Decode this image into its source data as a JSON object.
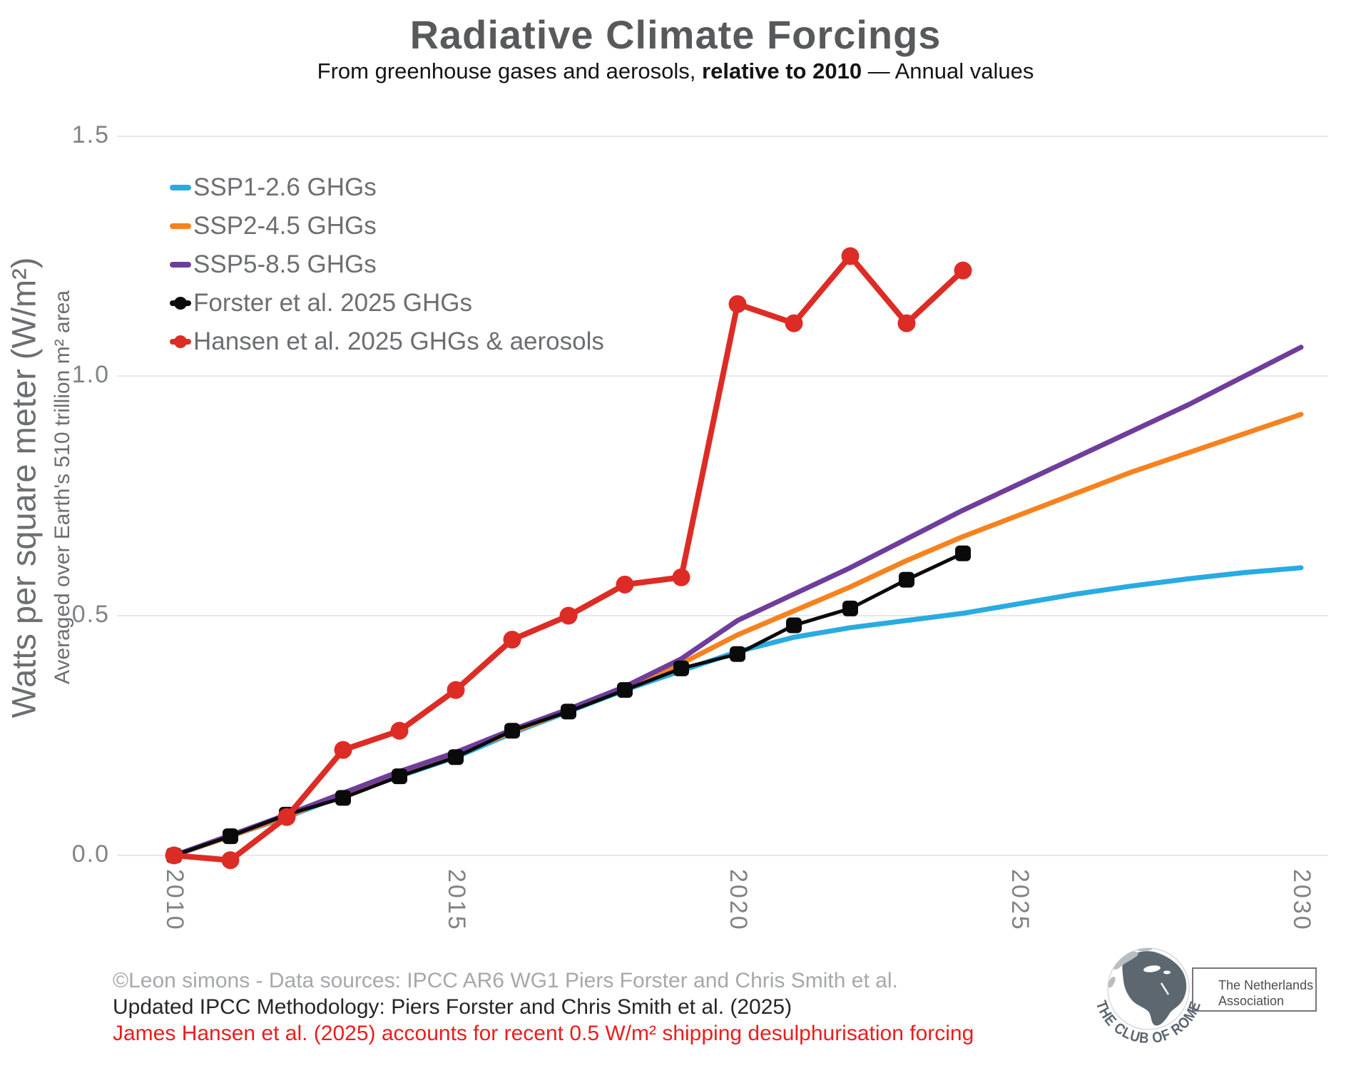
{
  "header": {
    "subtitle_pre": "From greenhouse gases and aerosols, ",
    "subtitle_bold": "relative to 2010",
    "subtitle_post": " — Annual values"
  },
  "chart_data": {
    "type": "line",
    "title": "Radiative Climate Forcings",
    "subtitle": "From greenhouse gases and aerosols, relative to 2010 — Annual values",
    "xlabel": "",
    "ylabel": "Watts per square meter (W/m²)",
    "ylabel_sub": "Averaged over Earth's 510 trillion m² area",
    "xlim": [
      2010,
      2030
    ],
    "ylim": [
      0.0,
      1.5
    ],
    "x_ticks": [
      2010,
      2015,
      2020,
      2025,
      2030
    ],
    "y_ticks": [
      0.0,
      0.5,
      1.0,
      1.5
    ],
    "grid": "horizontal",
    "grid_color": "#E8E8E8",
    "legend_position": "top-left",
    "series": [
      {
        "name": "SSP1-2.6 GHGs",
        "color": "#29ABE2",
        "marker": "none",
        "line_width": 7,
        "x": [
          2010,
          2011,
          2012,
          2013,
          2014,
          2015,
          2016,
          2017,
          2018,
          2019,
          2020,
          2021,
          2022,
          2023,
          2024,
          2025,
          2026,
          2027,
          2028,
          2029,
          2030
        ],
        "values": [
          0.0,
          0.04,
          0.08,
          0.125,
          0.165,
          0.205,
          0.255,
          0.3,
          0.345,
          0.385,
          0.425,
          0.455,
          0.475,
          0.49,
          0.505,
          0.525,
          0.545,
          0.562,
          0.577,
          0.59,
          0.6
        ]
      },
      {
        "name": "SSP2-4.5 GHGs",
        "color": "#F6821F",
        "marker": "none",
        "line_width": 7,
        "x": [
          2010,
          2011,
          2012,
          2013,
          2014,
          2015,
          2016,
          2017,
          2018,
          2019,
          2020,
          2021,
          2022,
          2023,
          2024,
          2025,
          2026,
          2027,
          2028,
          2029,
          2030
        ],
        "values": [
          0.0,
          0.04,
          0.082,
          0.127,
          0.17,
          0.21,
          0.258,
          0.302,
          0.348,
          0.4,
          0.46,
          0.51,
          0.56,
          0.615,
          0.665,
          0.71,
          0.755,
          0.8,
          0.84,
          0.88,
          0.92
        ]
      },
      {
        "name": "SSP5-8.5 GHGs",
        "color": "#6F3D9B",
        "marker": "none",
        "line_width": 7,
        "x": [
          2010,
          2011,
          2012,
          2013,
          2014,
          2015,
          2016,
          2017,
          2018,
          2019,
          2020,
          2021,
          2022,
          2023,
          2024,
          2025,
          2026,
          2027,
          2028,
          2029,
          2030
        ],
        "values": [
          0.0,
          0.042,
          0.085,
          0.13,
          0.175,
          0.215,
          0.262,
          0.305,
          0.352,
          0.41,
          0.49,
          0.545,
          0.6,
          0.66,
          0.72,
          0.775,
          0.83,
          0.885,
          0.94,
          1.0,
          1.06
        ]
      },
      {
        "name": "Forster et al. 2025 GHGs",
        "color": "#0A0A0A",
        "marker": "square",
        "line_width": 5,
        "x": [
          2010,
          2011,
          2012,
          2013,
          2014,
          2015,
          2016,
          2017,
          2018,
          2019,
          2020,
          2021,
          2022,
          2023,
          2024
        ],
        "values": [
          0.0,
          0.04,
          0.085,
          0.12,
          0.165,
          0.205,
          0.26,
          0.3,
          0.345,
          0.39,
          0.42,
          0.48,
          0.515,
          0.575,
          0.63
        ]
      },
      {
        "name": "Hansen et al. 2025 GHGs & aerosols",
        "color": "#DD2C25",
        "marker": "circle",
        "line_width": 8,
        "x": [
          2010,
          2011,
          2012,
          2013,
          2014,
          2015,
          2016,
          2017,
          2018,
          2019,
          2020,
          2021,
          2022,
          2023,
          2024
        ],
        "values": [
          0.0,
          -0.01,
          0.08,
          0.22,
          0.26,
          0.345,
          0.45,
          0.5,
          0.565,
          0.58,
          1.15,
          1.11,
          1.25,
          1.11,
          1.22
        ]
      }
    ]
  },
  "footer": {
    "lines": [
      "©Leon simons - Data sources: IPCC AR6 WG1 Piers Forster and Chris Smith et al.",
      "Updated IPCC Methodology: Piers Forster and Chris Smith et al. (2025)",
      "James Hansen et al. (2025) accounts for recent 0.5 W/m² shipping desulphurisation forcing"
    ],
    "colors": [
      "#A6A8AB",
      "#262626",
      "#ED1C1C"
    ]
  },
  "logo": {
    "arc_text": "THE CLUB OF ROME",
    "box_line1": "The Netherlands",
    "box_line2": "Association"
  }
}
